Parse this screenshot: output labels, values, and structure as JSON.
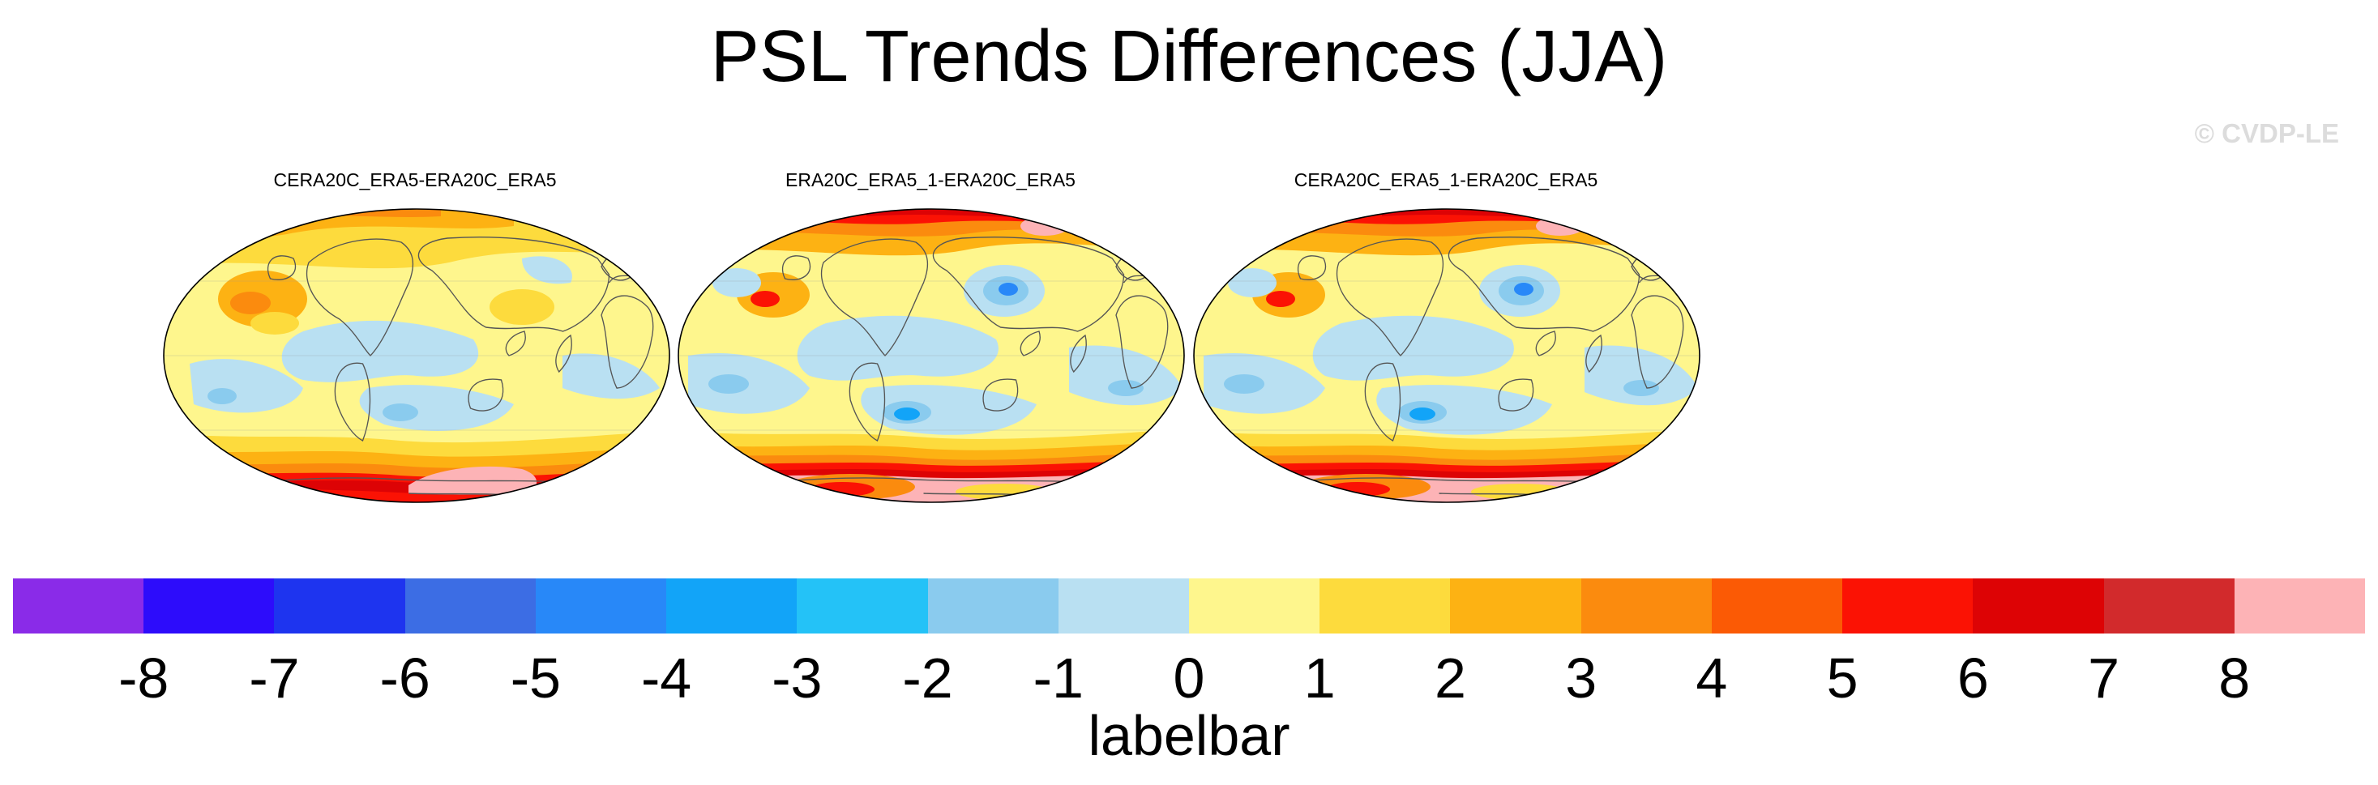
{
  "title": "PSL Trends Differences (JJA)",
  "watermark": "© CVDP-LE",
  "panels": [
    {
      "title": "CERA20C_ERA5-ERA20C_ERA5",
      "variant": "a"
    },
    {
      "title": "ERA20C_ERA5_1-ERA20C_ERA5",
      "variant": "b"
    },
    {
      "title": "CERA20C_ERA5_1-ERA20C_ERA5",
      "variant": "b"
    }
  ],
  "labelbar": {
    "label": "labelbar",
    "colors": [
      "#8a2be8",
      "#2d0cfb",
      "#1e34ef",
      "#3c6de4",
      "#2888f8",
      "#12a4f8",
      "#24c2f7",
      "#8acbee",
      "#b9e0f2",
      "#fef68d",
      "#fddb3d",
      "#fdb213",
      "#fb8b0e",
      "#fb5a05",
      "#fb1204",
      "#dd0305",
      "#d22a2c",
      "#fdb3b6"
    ],
    "ticks": [
      "-8",
      "-7",
      "-6",
      "-5",
      "-4",
      "-3",
      "-2",
      "-1",
      "0",
      "1",
      "2",
      "3",
      "4",
      "5",
      "6",
      "7",
      "8"
    ],
    "min": -8,
    "max": 8
  },
  "colors": {
    "land_outline": "#555555",
    "map_border": "#000000"
  }
}
